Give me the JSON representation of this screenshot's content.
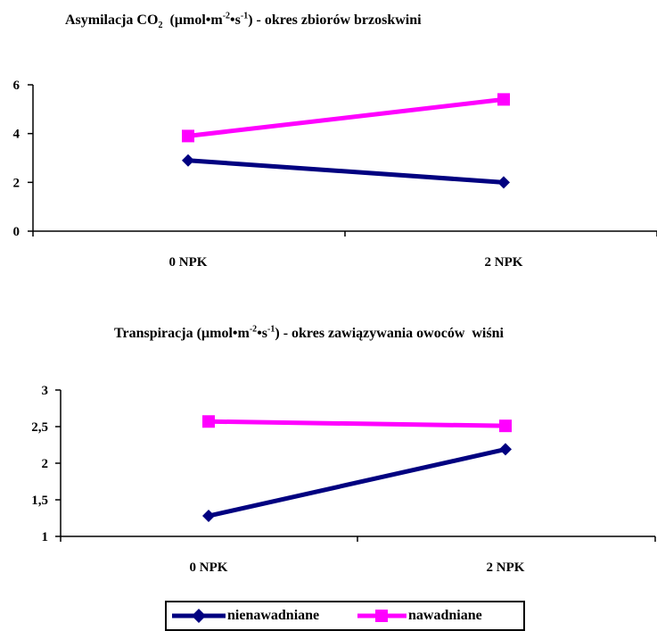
{
  "chart_data": [
    {
      "type": "line",
      "title_main": "Asymilacja CO",
      "title_sub": "2",
      "title_unit_pre": "  (µmol•m",
      "title_sup1": "-2",
      "title_mid": "•s",
      "title_sup2": "-1",
      "title_post": ") - okres zbiorów brzoskwini",
      "categories": [
        "0 NPK",
        "2 NPK"
      ],
      "yticks": [
        "0",
        "2",
        "4",
        "6"
      ],
      "ylim": [
        0,
        6
      ],
      "series": [
        {
          "name": "nienawadniane",
          "values": [
            2.9,
            2.0
          ],
          "color": "#000080",
          "marker": "diamond"
        },
        {
          "name": "nawadniane",
          "values": [
            3.9,
            5.4
          ],
          "color": "#ff00ff",
          "marker": "square"
        }
      ]
    },
    {
      "type": "line",
      "title_main": "Transpiracja (µmol•m",
      "title_sup1": "-2",
      "title_mid": "•s",
      "title_sup2": "-1",
      "title_post": ") - okres zawiązywania owoców  wiśni",
      "categories": [
        "0 NPK",
        "2 NPK"
      ],
      "yticks": [
        "1",
        "1,5",
        "2",
        "2,5",
        "3"
      ],
      "ylim": [
        1,
        3
      ],
      "series": [
        {
          "name": "nienawadniane",
          "values": [
            1.28,
            2.19
          ],
          "color": "#000080",
          "marker": "diamond"
        },
        {
          "name": "nawadniane",
          "values": [
            2.57,
            2.51
          ],
          "color": "#ff00ff",
          "marker": "square"
        }
      ]
    }
  ],
  "legend": {
    "items": [
      {
        "label": "nienawadniane",
        "color": "#000080",
        "marker": "diamond"
      },
      {
        "label": "nawadniane",
        "color": "#ff00ff",
        "marker": "square"
      }
    ]
  }
}
